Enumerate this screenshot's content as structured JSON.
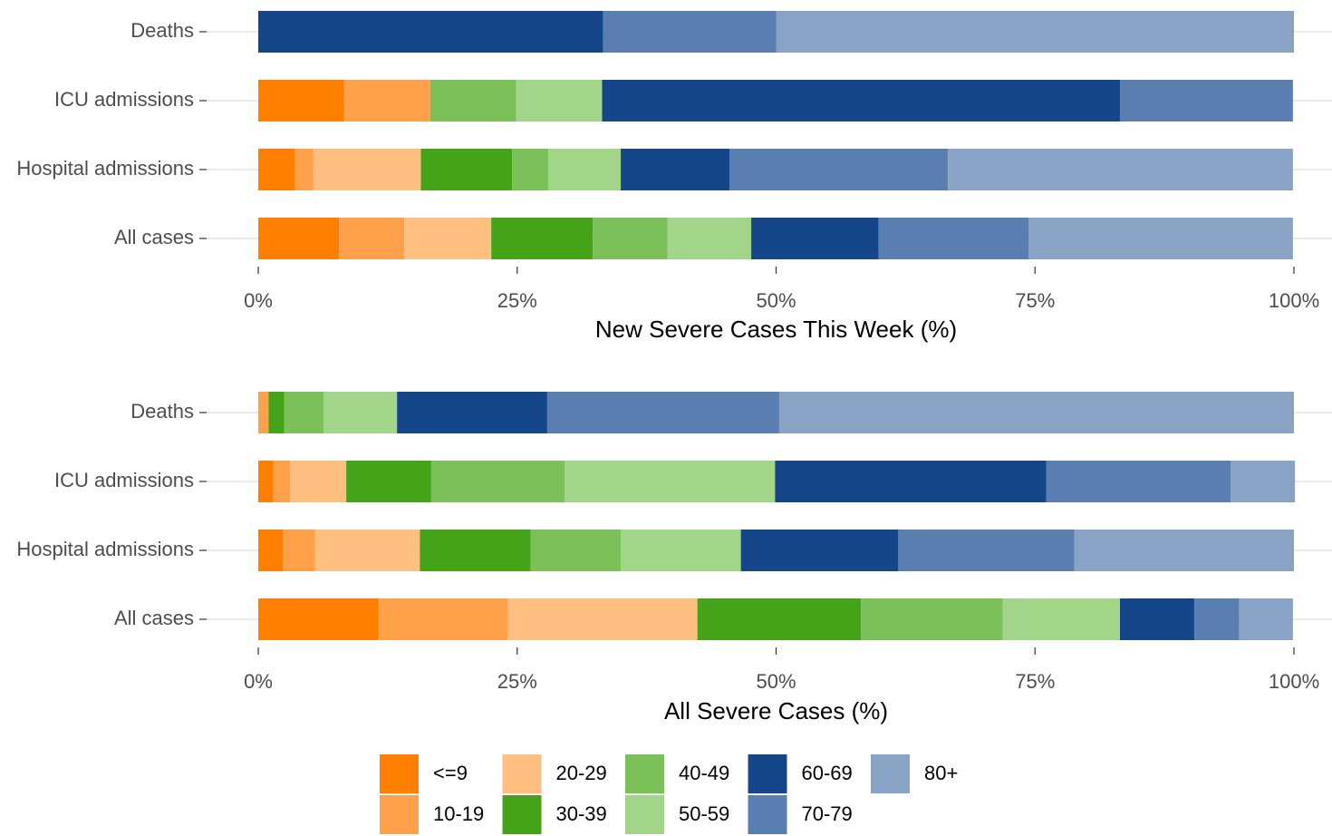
{
  "chart_data": [
    {
      "type": "bar",
      "orientation": "horizontal",
      "stacked": true,
      "xlabel": "New Severe Cases This Week (%)",
      "categories": [
        "Deaths",
        "ICU admissions",
        "Hospital admissions",
        "All cases"
      ],
      "xlim": [
        0,
        100
      ],
      "xticks": [
        {
          "value": 0,
          "label": "0%"
        },
        {
          "value": 25,
          "label": "25%"
        },
        {
          "value": 50,
          "label": "50%"
        },
        {
          "value": 75,
          "label": "75%"
        },
        {
          "value": 100,
          "label": "100%"
        }
      ],
      "series": [
        {
          "name": "<=9",
          "color": "#ff7f00",
          "values": [
            0,
            8.3,
            3.5,
            7.8
          ]
        },
        {
          "name": "10-19",
          "color": "#ffa04a",
          "values": [
            0,
            8.3,
            1.8,
            6.3
          ]
        },
        {
          "name": "20-29",
          "color": "#ffbf80",
          "values": [
            0,
            0,
            10.4,
            8.4
          ]
        },
        {
          "name": "30-39",
          "color": "#44a319",
          "values": [
            0,
            0,
            8.8,
            9.8
          ]
        },
        {
          "name": "40-49",
          "color": "#7cc05a",
          "values": [
            0,
            8.3,
            3.5,
            7.2
          ]
        },
        {
          "name": "50-59",
          "color": "#a2d48a",
          "values": [
            0,
            8.3,
            7.0,
            8.1
          ]
        },
        {
          "name": "60-69",
          "color": "#15468a",
          "values": [
            33.3,
            50.0,
            10.5,
            12.3
          ]
        },
        {
          "name": "70-79",
          "color": "#5a7eb0",
          "values": [
            16.7,
            16.7,
            21.1,
            14.5
          ]
        },
        {
          "name": "80+",
          "color": "#89a3c5",
          "values": [
            50.0,
            0,
            33.3,
            25.5
          ]
        }
      ]
    },
    {
      "type": "bar",
      "orientation": "horizontal",
      "stacked": true,
      "xlabel": "All Severe Cases (%)",
      "categories": [
        "Deaths",
        "ICU admissions",
        "Hospital admissions",
        "All cases"
      ],
      "xlim": [
        0,
        100
      ],
      "xticks": [
        {
          "value": 0,
          "label": "0%"
        },
        {
          "value": 25,
          "label": "25%"
        },
        {
          "value": 50,
          "label": "50%"
        },
        {
          "value": 75,
          "label": "75%"
        },
        {
          "value": 100,
          "label": "100%"
        }
      ],
      "legend": "bottom",
      "series": [
        {
          "name": "<=9",
          "color": "#ff7f00",
          "values": [
            0,
            1.4,
            2.4,
            11.6
          ]
        },
        {
          "name": "10-19",
          "color": "#ffa04a",
          "values": [
            1.0,
            1.7,
            3.1,
            12.5
          ]
        },
        {
          "name": "20-29",
          "color": "#ffbf80",
          "values": [
            0,
            5.4,
            10.1,
            18.3
          ]
        },
        {
          "name": "30-39",
          "color": "#44a319",
          "values": [
            1.5,
            8.2,
            10.7,
            15.8
          ]
        },
        {
          "name": "40-49",
          "color": "#7cc05a",
          "values": [
            3.8,
            12.9,
            8.7,
            13.7
          ]
        },
        {
          "name": "50-59",
          "color": "#a2d48a",
          "values": [
            7.1,
            20.3,
            11.6,
            11.3
          ]
        },
        {
          "name": "60-69",
          "color": "#15468a",
          "values": [
            14.5,
            26.2,
            15.2,
            7.2
          ]
        },
        {
          "name": "70-79",
          "color": "#5a7eb0",
          "values": [
            22.4,
            17.8,
            17.0,
            4.3
          ]
        },
        {
          "name": "80+",
          "color": "#89a3c5",
          "values": [
            49.7,
            6.2,
            21.2,
            5.2
          ]
        }
      ]
    }
  ]
}
